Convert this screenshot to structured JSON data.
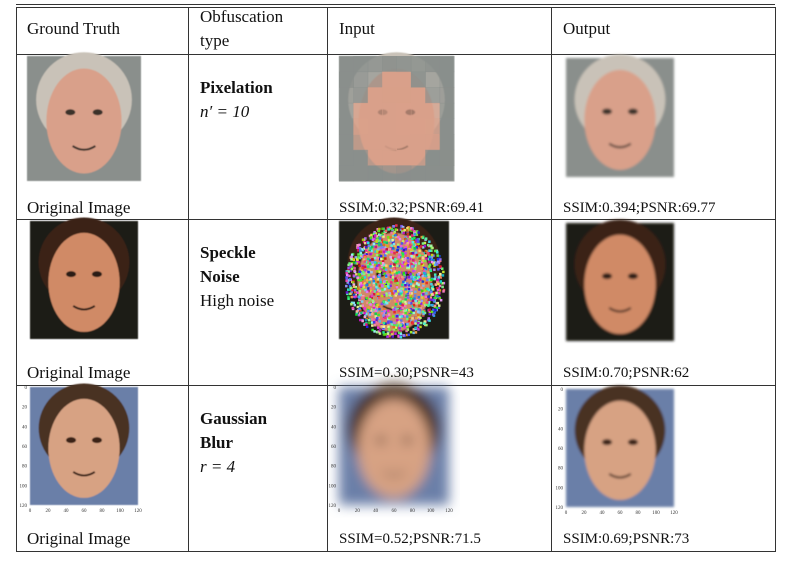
{
  "table": {
    "header": [
      "Ground Truth",
      "Obfuscation type",
      "Input",
      "Output"
    ],
    "rows": [
      {
        "caption": "Original Image",
        "method": "Pixelation",
        "parameter": "n′ = 10",
        "input_metrics": "SSIM:0.32;PSNR:69.41",
        "output_metrics": "SSIM:0.394;PSNR:69.77"
      },
      {
        "caption": "Original Image",
        "method": "Speckle Noise",
        "parameter": "High noise",
        "input_metrics": "SSIM=0.30;PSNR=43",
        "output_metrics": "SSIM:0.70;PSNR:62"
      },
      {
        "caption": "Original Image",
        "method": "Gaussian Blur",
        "parameter": "r = 4",
        "input_metrics": "SSIM=0.52;PSNR:71.5",
        "output_metrics": "SSIM:0.69;PSNR:73"
      }
    ],
    "image_axis_ticks": [
      0,
      20,
      40,
      60,
      80,
      100,
      120
    ]
  }
}
